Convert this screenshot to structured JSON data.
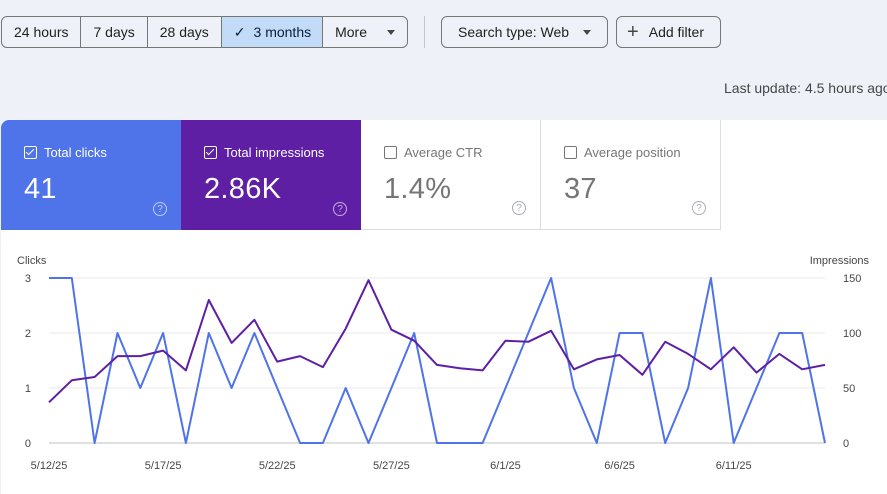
{
  "filters": {
    "ranges": [
      {
        "label": "24 hours",
        "selected": false
      },
      {
        "label": "7 days",
        "selected": false
      },
      {
        "label": "28 days",
        "selected": false
      },
      {
        "label": "3 months",
        "selected": true
      },
      {
        "label": "More",
        "selected": false
      }
    ],
    "search_type": "Search type: Web",
    "add_filter": "Add filter"
  },
  "last_update": "Last update: 4.5 hours ago",
  "metrics": {
    "clicks": {
      "label": "Total clicks",
      "value": "41",
      "checked": true
    },
    "impressions": {
      "label": "Total impressions",
      "value": "2.86K",
      "checked": true
    },
    "ctr": {
      "label": "Average CTR",
      "value": "1.4%",
      "checked": false
    },
    "position": {
      "label": "Average position",
      "value": "37",
      "checked": false
    }
  },
  "icons": {
    "check": "checkmark-icon",
    "dropdown": "caret-down-icon",
    "add": "plus-icon",
    "help": "help-circle-icon"
  },
  "colors": {
    "clicks": "#4f73e8",
    "impressions": "#5e1fa5",
    "selected_range": "#c2dbf9"
  },
  "chart_data": {
    "type": "line",
    "ylabel": "Clicks",
    "y2label": "Impressions",
    "ylim": [
      0,
      3
    ],
    "y2lim": [
      0,
      150
    ],
    "yticks": [
      "0",
      "1",
      "2",
      "3"
    ],
    "y2ticks": [
      "0",
      "50",
      "100",
      "150"
    ],
    "xticks": [
      "5/12/25",
      "5/17/25",
      "5/22/25",
      "5/27/25",
      "6/1/25",
      "6/6/25",
      "6/11/25"
    ],
    "series": [
      {
        "name": "Clicks",
        "axis": "left",
        "values": [
          3,
          3,
          0,
          2,
          1,
          2,
          0,
          2,
          1,
          2,
          1,
          0,
          0,
          1,
          0,
          1,
          2,
          0,
          0,
          0,
          1,
          2,
          3,
          1,
          0,
          2,
          2,
          0,
          1,
          3,
          0,
          1,
          2,
          2,
          0
        ]
      },
      {
        "name": "Impressions",
        "axis": "right",
        "values": [
          37,
          57,
          60,
          79,
          79,
          84,
          66,
          130,
          91,
          112,
          74,
          79,
          69,
          104,
          148,
          103,
          93,
          71,
          68,
          66,
          93,
          92,
          102,
          67,
          76,
          80,
          62,
          92,
          81,
          67,
          87,
          64,
          81,
          67,
          71
        ]
      }
    ]
  }
}
